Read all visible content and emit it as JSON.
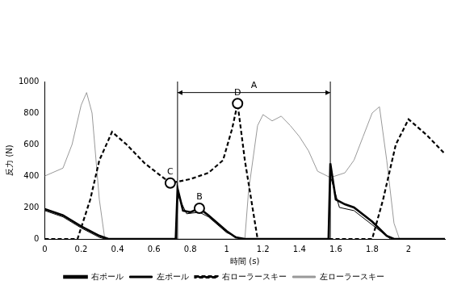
{
  "chart_data": {
    "type": "line",
    "x_label": "時間 (s)",
    "y_label": "反力 (N)",
    "xlim": [
      0,
      2.2
    ],
    "xticks": [
      0,
      0.2,
      0.4,
      0.6,
      0.8,
      1,
      1.2,
      1.4,
      1.6,
      1.8,
      2
    ],
    "ylim": [
      0,
      1000
    ],
    "yticks": [
      0,
      200,
      400,
      600,
      800,
      1000
    ],
    "grid": false,
    "legend": "bottom",
    "series": [
      {
        "name": "右ポール",
        "color": "#000000",
        "line_style": "thick",
        "x": [
          0,
          0.1,
          0.2,
          0.3,
          0.35,
          0.72,
          0.73,
          0.76,
          0.8,
          0.85,
          0.9,
          0.95,
          1.0,
          1.05,
          1.1,
          1.56,
          1.57,
          1.6,
          1.65,
          1.7,
          1.8,
          1.88,
          1.92,
          2.2
        ],
        "values": [
          190,
          150,
          80,
          20,
          0,
          0,
          320,
          180,
          170,
          195,
          150,
          100,
          50,
          10,
          0,
          0,
          480,
          250,
          220,
          200,
          110,
          20,
          0,
          0
        ]
      },
      {
        "name": "左ポール",
        "color": "#000000",
        "line_style": "solid",
        "x": [
          0,
          0.1,
          0.2,
          0.3,
          0.33,
          0.72,
          0.73,
          0.78,
          0.85,
          0.9,
          1.0,
          1.08,
          1.56,
          1.57,
          1.62,
          1.7,
          1.8,
          1.9,
          2.2
        ],
        "values": [
          180,
          140,
          70,
          10,
          0,
          0,
          280,
          160,
          170,
          140,
          40,
          0,
          0,
          400,
          200,
          180,
          90,
          0,
          0
        ]
      },
      {
        "name": "右ローラースキー",
        "color": "#000000",
        "line_style": "dashed",
        "x": [
          0,
          0.18,
          0.25,
          0.3,
          0.37,
          0.45,
          0.55,
          0.69,
          0.8,
          0.9,
          0.98,
          1.03,
          1.06,
          1.1,
          1.17,
          1.8,
          1.86,
          1.93,
          2.0,
          2.1,
          2.2
        ],
        "values": [
          0,
          0,
          250,
          500,
          680,
          600,
          480,
          355,
          380,
          420,
          500,
          700,
          860,
          500,
          0,
          0,
          250,
          600,
          760,
          660,
          540
        ]
      },
      {
        "name": "左ローラースキー",
        "color": "#999999",
        "line_style": "solid",
        "x": [
          0,
          0.1,
          0.15,
          0.2,
          0.23,
          0.26,
          0.3,
          0.33,
          1.1,
          1.12,
          1.17,
          1.2,
          1.25,
          1.3,
          1.35,
          1.4,
          1.45,
          1.5,
          1.57,
          1.65,
          1.7,
          1.75,
          1.8,
          1.84,
          1.88,
          1.92,
          1.95,
          2.2
        ],
        "values": [
          400,
          450,
          600,
          850,
          930,
          800,
          250,
          0,
          0,
          300,
          720,
          790,
          750,
          780,
          720,
          650,
          560,
          430,
          390,
          420,
          500,
          650,
          800,
          840,
          500,
          100,
          0,
          0
        ]
      }
    ],
    "annotations": [
      {
        "text": "A",
        "x_start": 0.73,
        "x_end": 1.57,
        "y": 930
      },
      {
        "text": "B",
        "x": 0.85,
        "y": 195
      },
      {
        "text": "C",
        "x": 0.69,
        "y": 355
      },
      {
        "text": "D",
        "x": 1.06,
        "y": 860
      }
    ]
  }
}
